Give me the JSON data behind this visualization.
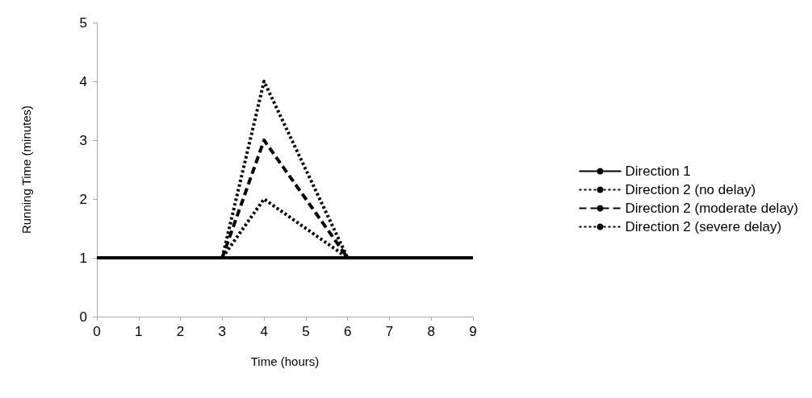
{
  "chart_data": {
    "type": "line",
    "xlabel": "Time (hours)",
    "ylabel": "Running Time (minutes)",
    "x": [
      0,
      3,
      4,
      6,
      9
    ],
    "series": [
      {
        "name": "Direction 1",
        "color": "#000000",
        "line_style": "solid",
        "values": [
          1,
          1,
          1,
          1,
          1
        ]
      },
      {
        "name": "Direction 2 (no delay)",
        "color": "#000000",
        "line_style": "dotted",
        "values": [
          1,
          1,
          2,
          1,
          1
        ]
      },
      {
        "name": "Direction 2 (moderate delay)",
        "color": "#000000",
        "line_style": "dashed",
        "values": [
          1,
          1,
          3,
          1,
          1
        ]
      },
      {
        "name": "Direction 2 (severe delay)",
        "color": "#000000",
        "line_style": "dotted",
        "values": [
          1,
          1,
          4,
          1,
          1
        ]
      }
    ],
    "xlim": [
      0,
      9
    ],
    "xticks": [
      0,
      1,
      2,
      3,
      4,
      5,
      6,
      7,
      8,
      9
    ],
    "ylim": [
      0,
      5
    ],
    "yticks": [
      0,
      1,
      2,
      3,
      4,
      5
    ],
    "grid": false,
    "legend": "right",
    "marker": "none"
  }
}
